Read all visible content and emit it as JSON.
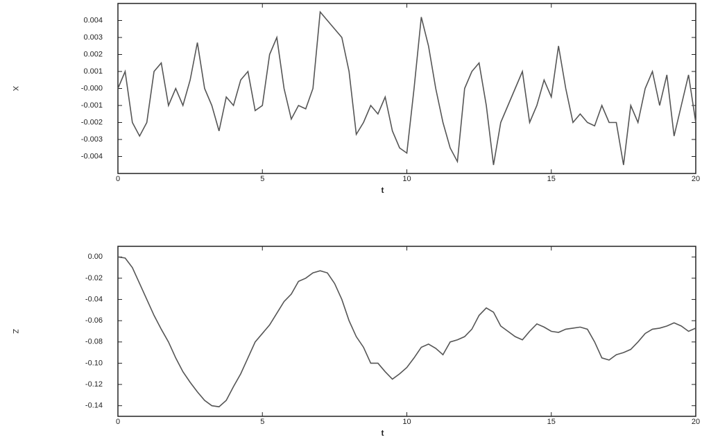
{
  "chart_data": [
    {
      "type": "line",
      "ylabel": "X",
      "xlabel": "t",
      "color": "#555555",
      "xlim": [
        0,
        20
      ],
      "ylim": [
        -0.005,
        0.005
      ],
      "xticks": [
        0,
        5,
        10,
        15,
        20
      ],
      "yticks": [
        0.004,
        0.003,
        0.002,
        0.001,
        {
          "value": 0,
          "label": "-0.000"
        },
        -0.001,
        -0.002,
        -0.003,
        -0.004
      ],
      "x": [
        0,
        0.25,
        0.5,
        0.75,
        1,
        1.25,
        1.5,
        1.75,
        2,
        2.25,
        2.5,
        2.75,
        3,
        3.25,
        3.5,
        3.75,
        4,
        4.25,
        4.5,
        4.75,
        5,
        5.25,
        5.5,
        5.75,
        6,
        6.25,
        6.5,
        6.75,
        7,
        7.25,
        7.5,
        7.75,
        8,
        8.25,
        8.5,
        8.75,
        9,
        9.25,
        9.5,
        9.75,
        10,
        10.25,
        10.5,
        10.75,
        11,
        11.25,
        11.5,
        11.75,
        12,
        12.25,
        12.5,
        12.75,
        13,
        13.25,
        13.5,
        13.75,
        14,
        14.25,
        14.5,
        14.75,
        15,
        15.25,
        15.5,
        15.75,
        16,
        16.25,
        16.5,
        16.75,
        17,
        17.25,
        17.5,
        17.75,
        18,
        18.25,
        18.5,
        18.75,
        19,
        19.25,
        19.5,
        19.75,
        20
      ],
      "values": [
        0,
        0.001,
        -0.002,
        -0.0028,
        -0.002,
        0.001,
        0.0015,
        -0.001,
        0,
        -0.001,
        0.0005,
        0.0027,
        0,
        -0.001,
        -0.0025,
        -0.0005,
        -0.001,
        0.0005,
        0.001,
        -0.0013,
        -0.001,
        0.002,
        0.003,
        0,
        -0.0018,
        -0.001,
        -0.0012,
        0,
        0.0045,
        0.004,
        0.0035,
        0.003,
        0.001,
        -0.0027,
        -0.002,
        -0.001,
        -0.0015,
        -0.0005,
        -0.0025,
        -0.0035,
        -0.0038,
        0,
        0.0042,
        0.0025,
        0,
        -0.002,
        -0.0035,
        -0.0043,
        0,
        0.001,
        0.0015,
        -0.001,
        -0.0045,
        -0.002,
        -0.001,
        0,
        0.001,
        -0.002,
        -0.001,
        0.0005,
        -0.0005,
        0.0025,
        0,
        -0.002,
        -0.0015,
        -0.002,
        -0.0022,
        -0.001,
        -0.002,
        -0.002,
        -0.0045,
        -0.001,
        -0.002,
        0,
        0.001,
        -0.001,
        0.0008,
        -0.0028,
        -0.001,
        0.0008,
        -0.002
      ]
    },
    {
      "type": "line",
      "ylabel": "Z",
      "xlabel": "t",
      "color": "#555555",
      "xlim": [
        0,
        20
      ],
      "ylim": [
        -0.15,
        0.01
      ],
      "xticks": [
        0,
        5,
        10,
        15,
        20
      ],
      "yticks": [
        {
          "value": 0,
          "label": "0.00"
        },
        -0.02,
        -0.04,
        -0.06,
        -0.08,
        {
          "value": -0.1,
          "label": "-0.10"
        },
        -0.12,
        -0.14
      ],
      "x": [
        0,
        0.25,
        0.5,
        0.75,
        1,
        1.25,
        1.5,
        1.75,
        2,
        2.25,
        2.5,
        2.75,
        3,
        3.25,
        3.5,
        3.75,
        4,
        4.25,
        4.5,
        4.75,
        5,
        5.25,
        5.5,
        5.75,
        6,
        6.25,
        6.5,
        6.75,
        7,
        7.25,
        7.5,
        7.75,
        8,
        8.25,
        8.5,
        8.75,
        9,
        9.25,
        9.5,
        9.75,
        10,
        10.25,
        10.5,
        10.75,
        11,
        11.25,
        11.5,
        11.75,
        12,
        12.25,
        12.5,
        12.75,
        13,
        13.25,
        13.5,
        13.75,
        14,
        14.25,
        14.5,
        14.75,
        15,
        15.25,
        15.5,
        15.75,
        16,
        16.25,
        16.5,
        16.75,
        17,
        17.25,
        17.5,
        17.75,
        18,
        18.25,
        18.5,
        18.75,
        19,
        19.25,
        19.5,
        19.75,
        20
      ],
      "values": [
        0,
        -0.001,
        -0.01,
        -0.025,
        -0.04,
        -0.055,
        -0.068,
        -0.08,
        -0.095,
        -0.108,
        -0.118,
        -0.127,
        -0.135,
        -0.14,
        -0.141,
        -0.135,
        -0.122,
        -0.11,
        -0.095,
        -0.08,
        -0.072,
        -0.064,
        -0.053,
        -0.042,
        -0.035,
        -0.023,
        -0.02,
        -0.015,
        -0.013,
        -0.015,
        -0.025,
        -0.04,
        -0.06,
        -0.075,
        -0.085,
        -0.1,
        -0.1,
        -0.108,
        -0.115,
        -0.11,
        -0.104,
        -0.095,
        -0.085,
        -0.082,
        -0.086,
        -0.092,
        -0.08,
        -0.078,
        -0.075,
        -0.068,
        -0.055,
        -0.048,
        -0.052,
        -0.065,
        -0.07,
        -0.075,
        -0.078,
        -0.07,
        -0.063,
        -0.066,
        -0.07,
        -0.071,
        -0.068,
        -0.067,
        -0.066,
        -0.068,
        -0.08,
        -0.095,
        -0.097,
        -0.092,
        -0.09,
        -0.087,
        -0.08,
        -0.072,
        -0.068,
        -0.067,
        -0.065,
        -0.062,
        -0.065,
        -0.07,
        -0.067
      ]
    }
  ]
}
